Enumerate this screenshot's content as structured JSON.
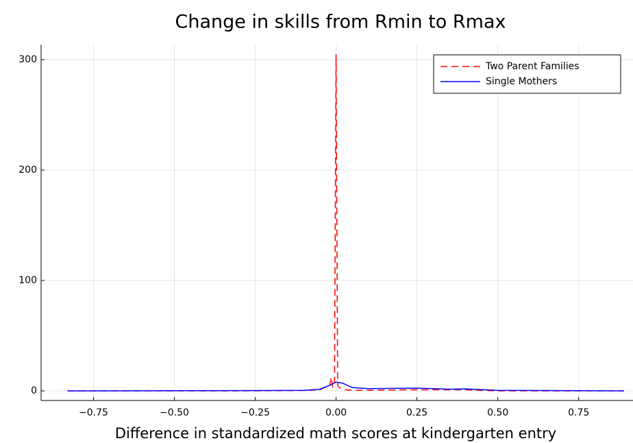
{
  "chart_data": {
    "type": "line",
    "title": "Change in skills from Rmin to Rmax",
    "x_label": "Difference in standardized math scores at kindergarten entry",
    "xlim": [
      -0.912,
      0.918
    ],
    "ylim": [
      -8.7,
      313.7
    ],
    "xticks": [
      {
        "value": -0.75,
        "label": "−0.75"
      },
      {
        "value": -0.5,
        "label": "−0.50"
      },
      {
        "value": -0.25,
        "label": "−0.25"
      },
      {
        "value": 0,
        "label": "0.00"
      },
      {
        "value": 0.25,
        "label": "0.25"
      },
      {
        "value": 0.5,
        "label": "0.50"
      },
      {
        "value": 0.75,
        "label": "0.75"
      }
    ],
    "yticks": [
      0,
      100,
      200,
      300
    ],
    "grid": true,
    "legend": "top-right",
    "series": [
      {
        "name": "Two Parent Families",
        "color": "#ff0000",
        "dash": "dashed",
        "x": [
          -0.83,
          -0.3,
          -0.1,
          -0.05,
          -0.02,
          -0.015,
          -0.01,
          -0.005,
          0,
          0.005,
          0.01,
          0.03,
          0.05,
          0.1,
          0.25,
          0.4,
          0.45,
          0.5,
          0.89
        ],
        "values": [
          0,
          0,
          0.3,
          1,
          5,
          12,
          3,
          8,
          305,
          5,
          3,
          1,
          0.5,
          0.5,
          1,
          1,
          0.5,
          0,
          0
        ]
      },
      {
        "name": "Single Mothers",
        "color": "#0000ff",
        "dash": "solid",
        "x": [
          -0.83,
          -0.3,
          -0.1,
          -0.05,
          -0.02,
          0,
          0.02,
          0.05,
          0.1,
          0.25,
          0.35,
          0.4,
          0.5,
          0.7,
          0.89
        ],
        "values": [
          0,
          0.2,
          0.5,
          1.5,
          5,
          8,
          7,
          3,
          2,
          2.5,
          1.5,
          1.8,
          0.5,
          0.2,
          0
        ]
      }
    ]
  }
}
